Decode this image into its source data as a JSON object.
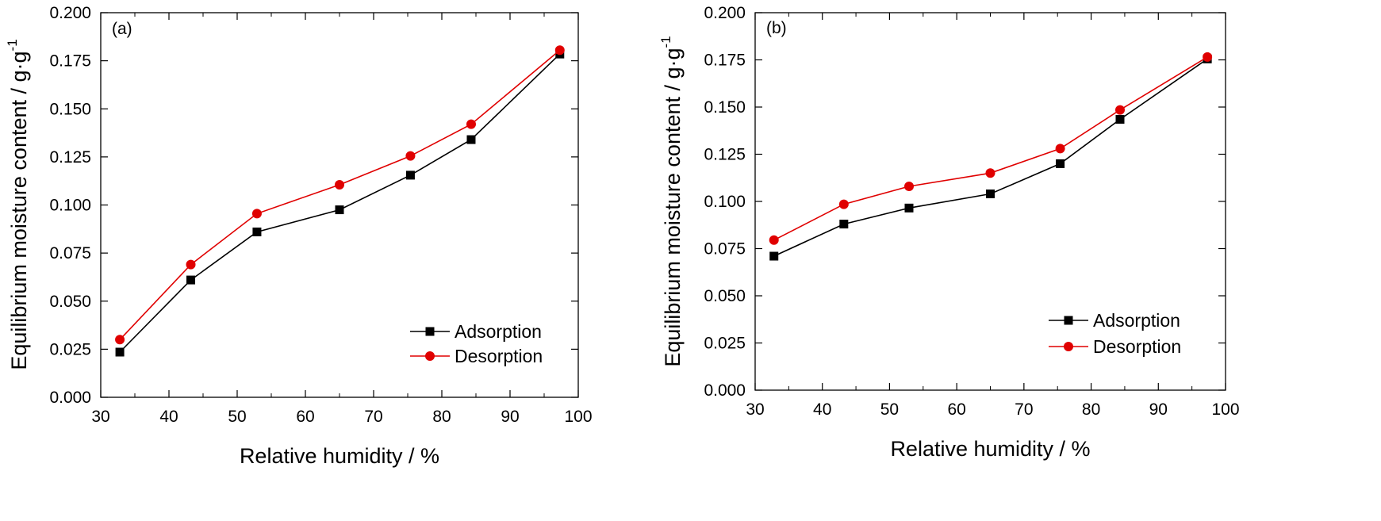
{
  "chart_data": [
    {
      "type": "line",
      "panel_label": "(a)",
      "xlabel": "Relative humidity / %",
      "ylabel": "Equilibrium moisture content / g·g",
      "ylabel_superscript": "-1",
      "xlim": [
        30,
        100
      ],
      "ylim": [
        0,
        0.2
      ],
      "xticks": [
        30,
        40,
        50,
        60,
        70,
        80,
        90,
        100
      ],
      "yticks": [
        "0.000",
        "0.025",
        "0.050",
        "0.075",
        "0.100",
        "0.125",
        "0.150",
        "0.175",
        "0.200"
      ],
      "grid": false,
      "legend_position": "bottom-right",
      "x": [
        32.8,
        43.2,
        52.9,
        65.0,
        75.4,
        84.3,
        97.3
      ],
      "series": [
        {
          "name": "Adsorption",
          "color": "#000000",
          "marker": "square",
          "values": [
            0.0235,
            0.061,
            0.086,
            0.0975,
            0.1155,
            0.134,
            0.1785
          ]
        },
        {
          "name": "Desorption",
          "color": "#e00000",
          "marker": "circle",
          "values": [
            0.03,
            0.069,
            0.0955,
            0.1105,
            0.1255,
            0.142,
            0.1805
          ]
        }
      ]
    },
    {
      "type": "line",
      "panel_label": "(b)",
      "xlabel": "Relative humidity / %",
      "ylabel": "Equilibrium moisture content / g·g",
      "ylabel_superscript": "-1",
      "xlim": [
        30,
        100
      ],
      "ylim": [
        0,
        0.2
      ],
      "xticks": [
        30,
        40,
        50,
        60,
        70,
        80,
        90,
        100
      ],
      "yticks": [
        "0.000",
        "0.025",
        "0.050",
        "0.075",
        "0.100",
        "0.125",
        "0.150",
        "0.175",
        "0.200"
      ],
      "grid": false,
      "legend_position": "bottom-right",
      "x": [
        32.8,
        43.2,
        52.9,
        65.0,
        75.4,
        84.3,
        97.3
      ],
      "series": [
        {
          "name": "Adsorption",
          "color": "#000000",
          "marker": "square",
          "values": [
            0.071,
            0.088,
            0.0965,
            0.104,
            0.12,
            0.1435,
            0.1755
          ]
        },
        {
          "name": "Desorption",
          "color": "#e00000",
          "marker": "circle",
          "values": [
            0.0795,
            0.0985,
            0.108,
            0.115,
            0.128,
            0.1485,
            0.1765
          ]
        }
      ]
    }
  ]
}
